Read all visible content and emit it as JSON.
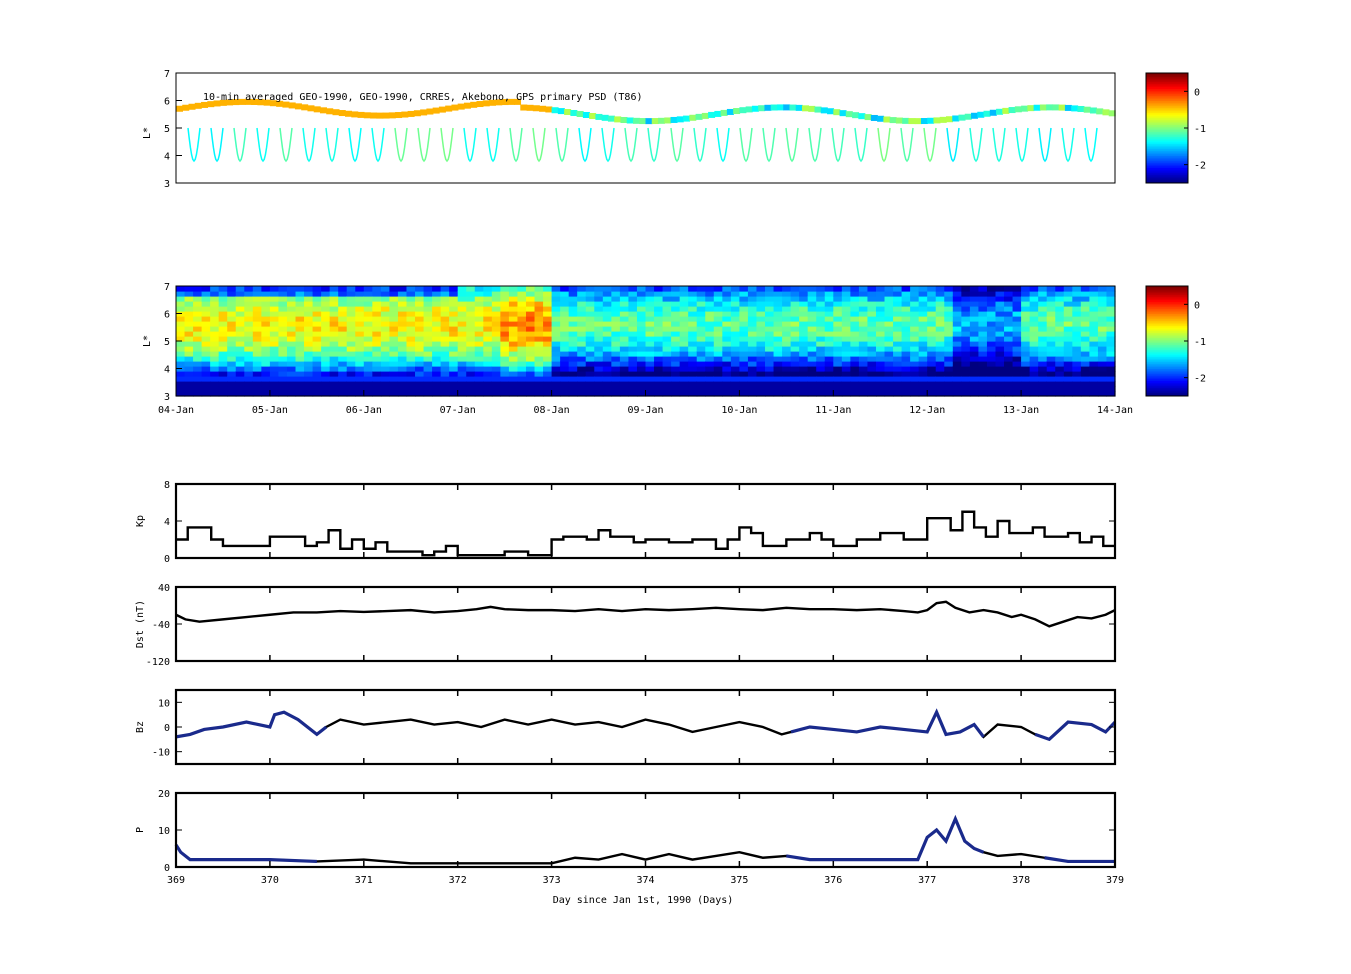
{
  "figure": {
    "top_annotation": "10-min averaged GEO-1990, GEO-1990, CRRES, Akebono, GPS  primary PSD (T86)",
    "xlabel": "Day since Jan 1st, 1990 (Days)"
  },
  "colors": {
    "trace": "#000000",
    "highlight": "#1a2a8c",
    "axis": "#000000"
  },
  "chart_data": [
    {
      "type": "heatmap",
      "id": "psd-observed",
      "ylabel": "L*",
      "ylim": [
        3,
        7
      ],
      "yticks": [
        3,
        4,
        5,
        6,
        7
      ],
      "colorbar": {
        "range": [
          -2.5,
          0.5
        ],
        "ticks": [
          0,
          -1,
          -2
        ],
        "colormap": "jet"
      },
      "grid": false,
      "description_values": "sparse observed PSD along satellite tracks, log10 scale"
    },
    {
      "type": "heatmap",
      "id": "psd-assimilated",
      "ylabel": "L*",
      "ylim": [
        3,
        7
      ],
      "yticks": [
        3,
        4,
        5,
        6,
        7
      ],
      "xticks": [
        "04-Jan",
        "05-Jan",
        "06-Jan",
        "07-Jan",
        "08-Jan",
        "09-Jan",
        "10-Jan",
        "11-Jan",
        "12-Jan",
        "13-Jan",
        "14-Jan"
      ],
      "colorbar": {
        "range": [
          -2.5,
          0.5
        ],
        "ticks": [
          0,
          -1,
          -2
        ],
        "colormap": "jet"
      },
      "grid": false
    },
    {
      "type": "line",
      "id": "kp",
      "ylabel": "Kp",
      "ylim": [
        0,
        8
      ],
      "yticks": [
        0,
        4,
        8
      ],
      "xlim": [
        369,
        379
      ],
      "series": [
        {
          "step": true,
          "x": [
            369.0,
            369.125,
            369.375,
            369.5,
            369.75,
            370.0,
            370.375,
            370.5,
            370.625,
            370.75,
            370.875,
            371.0,
            371.125,
            371.25,
            371.375,
            371.625,
            371.75,
            371.875,
            372.0,
            372.125,
            372.5,
            372.75,
            373.0,
            373.125,
            373.375,
            373.5,
            373.625,
            373.875,
            374.0,
            374.25,
            374.5,
            374.75,
            374.875,
            375.0,
            375.125,
            375.25,
            375.5,
            375.75,
            375.875,
            376.0,
            376.25,
            376.5,
            376.75,
            377.0,
            377.25,
            377.375,
            377.5,
            377.625,
            377.75,
            377.875,
            378.125,
            378.25,
            378.5,
            378.625,
            378.75,
            378.875,
            379.0
          ],
          "y": [
            2.0,
            3.3,
            2.0,
            1.3,
            1.3,
            2.3,
            1.3,
            1.7,
            3.0,
            1.0,
            2.0,
            1.0,
            1.7,
            0.7,
            0.7,
            0.3,
            0.7,
            1.3,
            0.3,
            0.3,
            0.7,
            0.3,
            2.0,
            2.3,
            2.0,
            3.0,
            2.3,
            1.7,
            2.0,
            1.7,
            2.0,
            1.0,
            2.0,
            3.3,
            2.7,
            1.3,
            2.0,
            2.7,
            2.0,
            1.3,
            2.0,
            2.7,
            2.0,
            4.3,
            3.0,
            5.0,
            3.3,
            2.3,
            4.0,
            2.7,
            3.3,
            2.3,
            2.7,
            1.7,
            2.3,
            1.3,
            1.3
          ]
        }
      ]
    },
    {
      "type": "line",
      "id": "dst",
      "ylabel": "Dst (nT)",
      "ylim": [
        -120,
        40
      ],
      "yticks": [
        40,
        -40,
        -120
      ],
      "xlim": [
        369,
        379
      ],
      "series": [
        {
          "x": [
            369.0,
            369.1,
            369.25,
            369.5,
            369.75,
            370.0,
            370.25,
            370.5,
            370.75,
            371.0,
            371.25,
            371.5,
            371.75,
            372.0,
            372.2,
            372.35,
            372.5,
            372.75,
            373.0,
            373.25,
            373.5,
            373.75,
            374.0,
            374.25,
            374.5,
            374.75,
            375.0,
            375.25,
            375.5,
            375.75,
            376.0,
            376.25,
            376.5,
            376.75,
            376.9,
            377.0,
            377.1,
            377.2,
            377.3,
            377.45,
            377.6,
            377.75,
            377.9,
            378.0,
            378.15,
            378.3,
            378.45,
            378.6,
            378.75,
            378.9,
            379.0
          ],
          "y": [
            -20,
            -30,
            -35,
            -30,
            -25,
            -20,
            -15,
            -15,
            -12,
            -14,
            -12,
            -10,
            -15,
            -12,
            -8,
            -3,
            -8,
            -10,
            -10,
            -12,
            -8,
            -12,
            -8,
            -10,
            -8,
            -5,
            -8,
            -10,
            -5,
            -8,
            -8,
            -10,
            -8,
            -12,
            -15,
            -10,
            5,
            8,
            -5,
            -15,
            -10,
            -15,
            -25,
            -20,
            -30,
            -45,
            -35,
            -25,
            -28,
            -20,
            -10
          ]
        }
      ],
      "highlighted_segments": []
    },
    {
      "type": "line",
      "id": "bz",
      "ylabel": "Bz",
      "ylim": [
        -15,
        15
      ],
      "yticks": [
        10,
        0,
        -10
      ],
      "xlim": [
        369,
        379
      ],
      "series": [
        {
          "x": [
            369.0,
            369.15,
            369.3,
            369.5,
            369.75,
            370.0,
            370.05,
            370.15,
            370.3,
            370.4,
            370.5,
            370.6,
            370.75,
            371.0,
            371.25,
            371.5,
            371.75,
            372.0,
            372.25,
            372.5,
            372.75,
            373.0,
            373.25,
            373.5,
            373.75,
            374.0,
            374.25,
            374.5,
            374.75,
            375.0,
            375.25,
            375.45,
            375.55,
            375.75,
            376.0,
            376.25,
            376.5,
            376.75,
            377.0,
            377.1,
            377.2,
            377.35,
            377.5,
            377.6,
            377.75,
            378.0,
            378.15,
            378.3,
            378.5,
            378.75,
            378.9,
            379.0
          ],
          "y": [
            -4,
            -3,
            -1,
            0,
            2,
            0,
            5,
            6,
            3,
            0,
            -3,
            0,
            3,
            1,
            2,
            3,
            1,
            2,
            0,
            3,
            1,
            3,
            1,
            2,
            0,
            3,
            1,
            -2,
            0,
            2,
            0,
            -3,
            -2,
            0,
            -1,
            -2,
            0,
            -1,
            -2,
            6,
            -3,
            -2,
            1,
            -4,
            1,
            0,
            -3,
            -5,
            2,
            1,
            -2,
            2
          ]
        }
      ],
      "highlighted_ranges": [
        [
          369.0,
          370.6
        ],
        [
          375.55,
          377.7
        ],
        [
          378.15,
          379.0
        ]
      ]
    },
    {
      "type": "line",
      "id": "p",
      "ylabel": "P",
      "ylim": [
        0,
        20
      ],
      "yticks": [
        0,
        10,
        20
      ],
      "xlim": [
        369,
        379
      ],
      "xticks": [
        369,
        370,
        371,
        372,
        373,
        374,
        375,
        376,
        377,
        378,
        379
      ],
      "series": [
        {
          "x": [
            369.0,
            369.05,
            369.15,
            369.3,
            369.5,
            370.0,
            370.5,
            371.0,
            371.5,
            372.0,
            372.5,
            373.0,
            373.25,
            373.5,
            373.75,
            374.0,
            374.25,
            374.5,
            374.75,
            375.0,
            375.25,
            375.5,
            375.75,
            376.0,
            376.5,
            376.9,
            377.0,
            377.1,
            377.2,
            377.3,
            377.4,
            377.5,
            377.6,
            377.75,
            378.0,
            378.25,
            378.5,
            378.75,
            379.0
          ],
          "y": [
            6,
            4,
            2,
            2,
            2,
            2,
            1.5,
            2,
            1,
            1,
            1,
            1,
            2.5,
            2,
            3.5,
            2,
            3.5,
            2,
            3,
            4,
            2.5,
            3,
            2,
            2,
            2,
            2,
            8,
            10,
            7,
            13,
            7,
            5,
            4,
            3,
            3.5,
            2.5,
            1.5,
            1.5,
            1.5
          ]
        }
      ],
      "highlighted_ranges": [
        [
          369.0,
          370.7
        ],
        [
          375.3,
          377.7
        ],
        [
          378.1,
          379.0
        ]
      ]
    }
  ]
}
